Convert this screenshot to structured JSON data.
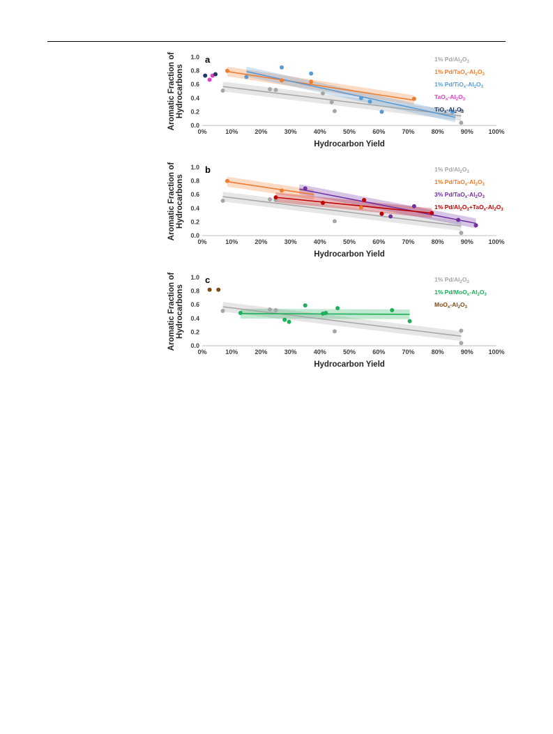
{
  "chart_data": [
    {
      "type": "scatter",
      "panel_label": "a",
      "xlabel": "Hydrocarbon Yield",
      "ylabel": [
        "Aromatic Fraction of",
        "Hydrocarbons"
      ],
      "xlim": [
        0,
        100
      ],
      "ylim": [
        0,
        1.0
      ],
      "x_ticks": [
        "0%",
        "10%",
        "20%",
        "30%",
        "40%",
        "50%",
        "60%",
        "70%",
        "80%",
        "90%",
        "100%"
      ],
      "y_ticks": [
        "0.0",
        "0.2",
        "0.4",
        "0.6",
        "0.8",
        "1.0"
      ],
      "legend_position": "top-right",
      "series": [
        {
          "name": "1% Pd/Al2O3",
          "legend": [
            "1% Pd/Al",
            "2",
            "O",
            "3",
            ""
          ],
          "color": "#a6a6a6",
          "points": [
            [
              7,
              0.51
            ],
            [
              23,
              0.53
            ],
            [
              25,
              0.52
            ],
            [
              41,
              0.47
            ],
            [
              44,
              0.34
            ],
            [
              45,
              0.21
            ],
            [
              88,
              0.22
            ],
            [
              88,
              0.04
            ]
          ],
          "fit": {
            "x": [
              7,
              88
            ],
            "y": [
              0.57,
              0.14
            ]
          }
        },
        {
          "name": "1% Pd/TaOx-Al2O3",
          "legend": [
            "1% Pd/TaO",
            "x",
            "-Al",
            "2",
            "O",
            "3",
            ""
          ],
          "color": "#ed7d31",
          "points": [
            [
              8.5,
              0.8
            ],
            [
              27,
              0.66
            ],
            [
              37,
              0.64
            ],
            [
              72,
              0.39
            ]
          ],
          "fit": {
            "x": [
              8.5,
              72
            ],
            "y": [
              0.79,
              0.37
            ]
          }
        },
        {
          "name": "1% Pd/TiOx-Al2O3",
          "legend": [
            "1% Pd/TiO",
            "x",
            "-Al",
            "2",
            "O",
            "3",
            ""
          ],
          "color": "#5b9bd5",
          "points": [
            [
              15,
              0.71
            ],
            [
              27,
              0.85
            ],
            [
              37,
              0.76
            ],
            [
              54,
              0.4
            ],
            [
              57,
              0.35
            ],
            [
              61,
              0.2
            ],
            [
              85,
              0.2
            ]
          ],
          "fit": {
            "x": [
              15,
              86
            ],
            "y": [
              0.79,
              0.12
            ]
          }
        },
        {
          "name": "TaOx-Al2O3",
          "legend": [
            "TaO",
            "x",
            "-Al",
            "2",
            "O",
            "3",
            ""
          ],
          "color": "#e040c0",
          "points": [
            [
              2.5,
              0.67
            ],
            [
              3.5,
              0.73
            ]
          ]
        },
        {
          "name": "TiOx-Al2O3",
          "legend": [
            "TiO",
            "x",
            "-Al",
            "2",
            "O",
            "3",
            ""
          ],
          "color": "#1f3864",
          "points": [
            [
              1,
              0.73
            ],
            [
              4.5,
              0.75
            ]
          ]
        }
      ]
    },
    {
      "type": "scatter",
      "panel_label": "b",
      "xlabel": "Hydrocarbon Yield",
      "ylabel": [
        "Aromatic Fraction of",
        "Hydrocarbons"
      ],
      "xlim": [
        0,
        100
      ],
      "ylim": [
        0,
        1.0
      ],
      "x_ticks": [
        "0%",
        "10%",
        "20%",
        "30%",
        "40%",
        "50%",
        "60%",
        "70%",
        "80%",
        "90%",
        "100%"
      ],
      "y_ticks": [
        "0.0",
        "0.2",
        "0.4",
        "0.6",
        "0.8",
        "1.0"
      ],
      "legend_position": "top-right",
      "series": [
        {
          "name": "1% Pd/Al2O3",
          "legend": [
            "1% Pd/Al",
            "2",
            "O",
            "3",
            ""
          ],
          "color": "#a6a6a6",
          "points": [
            [
              7,
              0.51
            ],
            [
              23,
              0.53
            ],
            [
              25,
              0.52
            ],
            [
              45,
              0.21
            ],
            [
              88,
              0.04
            ]
          ],
          "fit": {
            "x": [
              7,
              88
            ],
            "y": [
              0.57,
              0.14
            ]
          }
        },
        {
          "name": "1% Pd/TaOx-Al2O3",
          "legend": [
            "1% Pd/TaO",
            "x",
            "-Al",
            "2",
            "O",
            "3",
            ""
          ],
          "color": "#ed7d31",
          "points": [
            [
              8.5,
              0.8
            ],
            [
              27,
              0.66
            ],
            [
              54,
              0.41
            ]
          ],
          "fit": {
            "x": [
              8.5,
              38
            ],
            "y": [
              0.79,
              0.6
            ]
          }
        },
        {
          "name": "3% Pd/TaOx-Al2O3",
          "legend": [
            "3% Pd/TaO",
            "x",
            "-Al",
            "2",
            "O",
            "3",
            ""
          ],
          "color": "#7030a0",
          "points": [
            [
              35,
              0.69
            ],
            [
              64,
              0.28
            ],
            [
              72,
              0.43
            ],
            [
              87,
              0.23
            ],
            [
              93,
              0.15
            ]
          ],
          "fit": {
            "x": [
              33,
              93
            ],
            "y": [
              0.68,
              0.18
            ]
          }
        },
        {
          "name": "1% Pd/Al2O3+TaOx-Al2O3",
          "legend": [
            "1% Pd/Al",
            "2",
            "O",
            "3",
            "+TaO",
            "x",
            "-Al",
            "2",
            "O",
            "3",
            ""
          ],
          "color": "#c00000",
          "points": [
            [
              25,
              0.56
            ],
            [
              41,
              0.48
            ],
            [
              55,
              0.52
            ],
            [
              61,
              0.32
            ],
            [
              78,
              0.33
            ]
          ],
          "fit": {
            "x": [
              25,
              78
            ],
            "y": [
              0.56,
              0.33
            ]
          }
        }
      ]
    },
    {
      "type": "scatter",
      "panel_label": "c",
      "xlabel": "Hydrocarbon Yield",
      "ylabel": [
        "Aromatic Fraction of",
        "Hydrocarbons"
      ],
      "xlim": [
        0,
        100
      ],
      "ylim": [
        0,
        1.0
      ],
      "x_ticks": [
        "0%",
        "10%",
        "20%",
        "30%",
        "40%",
        "50%",
        "60%",
        "70%",
        "80%",
        "90%",
        "100%"
      ],
      "y_ticks": [
        "0.0",
        "0.2",
        "0.4",
        "0.6",
        "0.8",
        "1.0"
      ],
      "legend_position": "top-right",
      "series": [
        {
          "name": "1% Pd/Al2O3",
          "legend": [
            "1% Pd/Al",
            "2",
            "O",
            "3",
            ""
          ],
          "color": "#a6a6a6",
          "points": [
            [
              7,
              0.51
            ],
            [
              23,
              0.53
            ],
            [
              25,
              0.52
            ],
            [
              45,
              0.21
            ],
            [
              88,
              0.22
            ],
            [
              88,
              0.04
            ]
          ],
          "fit": {
            "x": [
              7,
              88
            ],
            "y": [
              0.57,
              0.14
            ]
          }
        },
        {
          "name": "1% Pd/MoOx-Al2O3",
          "legend": [
            "1% Pd/MoO",
            "x",
            "-Al",
            "2",
            "O",
            "3",
            ""
          ],
          "color": "#1fae5a",
          "points": [
            [
              13,
              0.48
            ],
            [
              28,
              0.38
            ],
            [
              29.5,
              0.35
            ],
            [
              35,
              0.59
            ],
            [
              41,
              0.47
            ],
            [
              42,
              0.48
            ],
            [
              46,
              0.55
            ],
            [
              64.5,
              0.52
            ],
            [
              70.5,
              0.36
            ]
          ],
          "fit": {
            "x": [
              13,
              70.5
            ],
            "y": [
              0.47,
              0.46
            ]
          }
        },
        {
          "name": "MoOx-Al2O3",
          "legend": [
            "MoO",
            "x",
            "-Al",
            "2",
            "O",
            "3",
            ""
          ],
          "color": "#7f4a12",
          "points": [
            [
              2.5,
              0.82
            ],
            [
              5.5,
              0.82
            ]
          ]
        }
      ]
    }
  ]
}
